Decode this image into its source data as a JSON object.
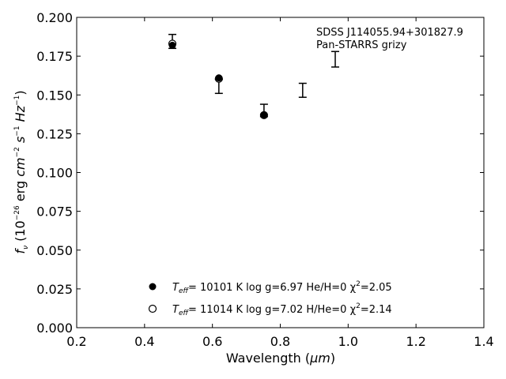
{
  "chart_data": {
    "type": "scatter",
    "xlabel": "Wavelength (μm)",
    "ylabel": "f_ν (10^-26 erg cm^-2 s^-1 Hz^-1)",
    "xlim": [
      0.2,
      1.4
    ],
    "ylim": [
      0.0,
      0.2
    ],
    "x_ticks": [
      "0.2",
      "0.4",
      "0.6",
      "0.8",
      "1.0",
      "1.2",
      "1.4"
    ],
    "y_ticks": [
      "0.000",
      "0.025",
      "0.050",
      "0.075",
      "0.100",
      "0.125",
      "0.150",
      "0.175",
      "0.200"
    ],
    "grid": false,
    "legend_position": "bottom-center",
    "annotation": [
      "SDSS J114055.94+301827.9",
      "Pan-STARRS grizy"
    ],
    "observed": {
      "x": [
        0.482,
        0.619,
        0.752,
        0.866,
        0.962
      ],
      "y": [
        0.1845,
        0.1555,
        0.14,
        0.153,
        0.173
      ],
      "yerr": [
        0.0045,
        0.0045,
        0.004,
        0.0045,
        0.005
      ]
    },
    "series": [
      {
        "name": "Teff= 10101 K  log g=6.97  He/H=0  χ2=2.05",
        "marker": "filled-circle",
        "x": [
          0.482,
          0.619,
          0.752
        ],
        "y": [
          0.182,
          0.161,
          0.137
        ]
      },
      {
        "name": "Teff= 11014 K  log g=7.02  H/He=0  χ2=2.14",
        "marker": "open-circle",
        "x": [
          0.482,
          0.619,
          0.752
        ],
        "y": [
          0.183,
          0.1605,
          0.137
        ]
      }
    ],
    "legend": [
      {
        "teff_prefix": "T",
        "teff_sub": "eff",
        "text": "= 10101 K  log g=6.97  He/H=0  χ",
        "chi_sup": "2",
        "chi_val": "=2.05"
      },
      {
        "teff_prefix": "T",
        "teff_sub": "eff",
        "text": "= 11014 K  log g=7.02  H/He=0  χ",
        "chi_sup": "2",
        "chi_val": "=2.14"
      }
    ],
    "xlabel_parts": {
      "main": "Wavelength (",
      "unit": "μm",
      "close": ")"
    },
    "ylabel_parts": {
      "f": "f",
      "nu": "ν",
      "open": " (10",
      "exp1": "−26",
      "erg": " erg ",
      "cm": "cm",
      "exp2": "−2",
      "s": " s",
      "exp3": "−1",
      "hz": " Hz",
      "exp4": "−1",
      "close": ")"
    }
  }
}
